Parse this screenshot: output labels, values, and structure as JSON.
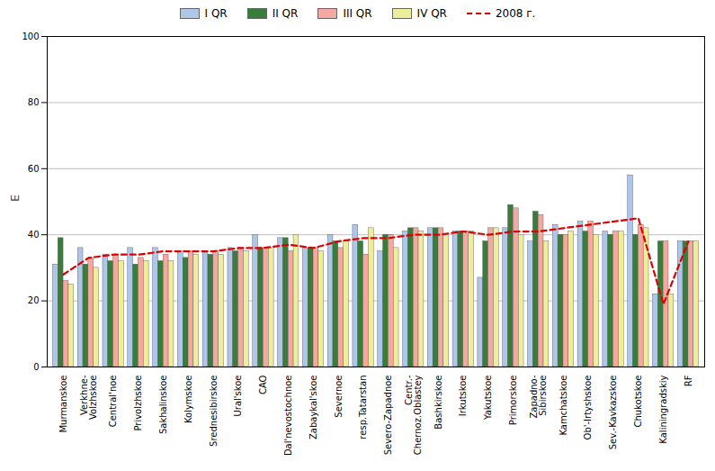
{
  "chart_data": {
    "type": "bar",
    "categories": [
      "Murmanskoe",
      "Verkhne-\nVolzhskoe",
      "Central'noe",
      "Privolzhskoe",
      "Sakhalinskoe",
      "Kolymskoe",
      "Srednesibirskoe",
      "Ural'skoe",
      "CAO",
      "Dal'nevostochnoe",
      "Zabaykal'skoe",
      "Severnoe",
      "resp.Tatarstan",
      "Severo-Zapadnoe",
      "Centr.-\nChernoz.Oblastey",
      "Bashkirskoe",
      "Irkutskoe",
      "Yakutskoe",
      "Primorskoe",
      "Zapadno-\nSibirskoe",
      "Kamchatskoe",
      "Ob'-Irtyshskoe",
      "Sev.-Kavkazskoe",
      "Chukotskoe",
      "Kaliningradskiy",
      "RF"
    ],
    "series": [
      {
        "name": "I QR",
        "color": "#aec6e8",
        "values": [
          31,
          36,
          34,
          36,
          36,
          35,
          35,
          36,
          40,
          39,
          36,
          40,
          43,
          35,
          41,
          42,
          41,
          27,
          42,
          38,
          43,
          44,
          41,
          58,
          22,
          38
        ]
      },
      {
        "name": "II QR",
        "color": "#3a7d3a",
        "values": [
          39,
          31,
          32,
          31,
          32,
          33,
          34,
          35,
          36,
          39,
          36,
          38,
          38,
          40,
          42,
          42,
          41,
          38,
          49,
          47,
          40,
          41,
          40,
          40,
          38,
          38
        ]
      },
      {
        "name": "III QR",
        "color": "#f4a8a0",
        "values": [
          26,
          33,
          34,
          33,
          34,
          35,
          35,
          36,
          36,
          35,
          36,
          36,
          34,
          40,
          42,
          42,
          41,
          42,
          48,
          46,
          40,
          44,
          41,
          43,
          38,
          38
        ]
      },
      {
        "name": "IV QR",
        "color": "#eded9c",
        "values": [
          25,
          30,
          32,
          32,
          32,
          34,
          34,
          35,
          36,
          40,
          35,
          38,
          42,
          36,
          41,
          40,
          41,
          42,
          40,
          38,
          41,
          40,
          41,
          42,
          22,
          38
        ]
      },
      {
        "name": "2008 г.",
        "type": "line",
        "color": "#dd0000",
        "line_style": "dashed",
        "values": [
          28,
          33,
          34,
          34,
          35,
          35,
          35,
          36,
          36,
          37,
          36,
          38,
          39,
          39,
          40,
          40,
          41,
          40,
          41,
          41,
          42,
          43,
          44,
          45,
          19,
          38
        ]
      }
    ],
    "ylabel": "E",
    "ylim": [
      0,
      100
    ],
    "yticks": [
      0,
      20,
      40,
      60,
      80,
      100
    ],
    "grid": true,
    "legend": "top"
  }
}
